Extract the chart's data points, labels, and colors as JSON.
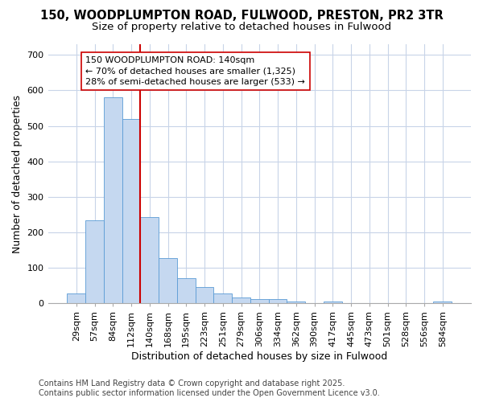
{
  "title_line1": "150, WOODPLUMPTON ROAD, FULWOOD, PRESTON, PR2 3TR",
  "title_line2": "Size of property relative to detached houses in Fulwood",
  "xlabel": "Distribution of detached houses by size in Fulwood",
  "ylabel": "Number of detached properties",
  "categories": [
    "29sqm",
    "57sqm",
    "84sqm",
    "112sqm",
    "140sqm",
    "168sqm",
    "195sqm",
    "223sqm",
    "251sqm",
    "279sqm",
    "306sqm",
    "334sqm",
    "362sqm",
    "390sqm",
    "417sqm",
    "445sqm",
    "473sqm",
    "501sqm",
    "528sqm",
    "556sqm",
    "584sqm"
  ],
  "values": [
    28,
    235,
    580,
    520,
    243,
    127,
    70,
    46,
    27,
    16,
    11,
    11,
    6,
    0,
    6,
    0,
    0,
    0,
    0,
    0,
    5
  ],
  "bar_color": "#c5d8f0",
  "bar_edge_color": "#5b9bd5",
  "vline_color": "#cc0000",
  "annotation_text": "150 WOODPLUMPTON ROAD: 140sqm\n← 70% of detached houses are smaller (1,325)\n28% of semi-detached houses are larger (533) →",
  "annotation_box_color": "#ffffff",
  "annotation_box_edge_color": "#cc0000",
  "ylim": [
    0,
    730
  ],
  "yticks": [
    0,
    100,
    200,
    300,
    400,
    500,
    600,
    700
  ],
  "background_color": "#ffffff",
  "plot_background_color": "#ffffff",
  "grid_color": "#c8d4e8",
  "footer_line1": "Contains HM Land Registry data © Crown copyright and database right 2025.",
  "footer_line2": "Contains public sector information licensed under the Open Government Licence v3.0.",
  "title_fontsize": 10.5,
  "subtitle_fontsize": 9.5,
  "axis_label_fontsize": 9,
  "tick_fontsize": 8,
  "annotation_fontsize": 8,
  "footer_fontsize": 7
}
